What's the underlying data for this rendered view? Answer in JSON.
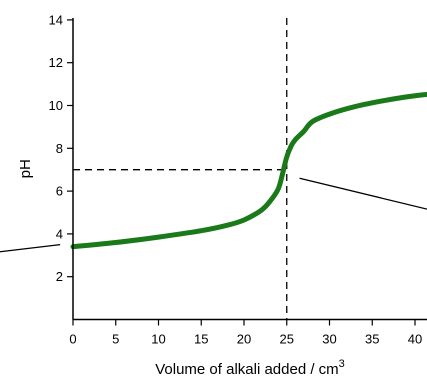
{
  "chart_data": {
    "type": "line",
    "xlabel": "Volume of alkali added / cm",
    "xlabel_superscript": "3",
    "ylabel": "pH",
    "xlim": [
      0,
      42
    ],
    "ylim": [
      0,
      14
    ],
    "x_ticks": [
      "0",
      "5",
      "10",
      "15",
      "20",
      "25",
      "30",
      "35",
      "40"
    ],
    "y_ticks": [
      "2",
      "4",
      "6",
      "8",
      "10",
      "12",
      "14"
    ],
    "grid": false,
    "series": [
      {
        "color": "#1a7a1a",
        "x": [
          0,
          5,
          10,
          15,
          18,
          20,
          22,
          23,
          24,
          24.5,
          25,
          25.5,
          26,
          27,
          28,
          30,
          33,
          36,
          39,
          42
        ],
        "y": [
          3.4,
          3.6,
          3.85,
          4.15,
          4.4,
          4.65,
          5.1,
          5.5,
          6.1,
          6.8,
          7.6,
          8.1,
          8.4,
          8.8,
          9.25,
          9.6,
          9.95,
          10.2,
          10.4,
          10.55
        ]
      }
    ],
    "guides": {
      "vertical_x": 25,
      "horizontal_y": 7,
      "style": "dashed"
    },
    "pointer_lines": [
      {
        "from": [
          -12,
          3.0
        ],
        "to": [
          -1.5,
          3.5
        ]
      },
      {
        "from": [
          26.5,
          6.6
        ],
        "to": [
          42,
          5.1
        ]
      }
    ]
  }
}
